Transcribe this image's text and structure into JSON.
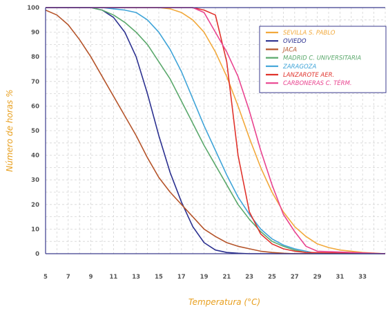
{
  "chart_data": {
    "type": "line",
    "title": "",
    "xlabel": "Temperatura (°C)",
    "ylabel": "Número de horas %",
    "xlim": [
      5,
      35
    ],
    "ylim": [
      0,
      100
    ],
    "xticks": [
      5,
      7,
      9,
      11,
      13,
      15,
      17,
      19,
      21,
      23,
      25,
      27,
      29,
      31,
      33
    ],
    "yticks": [
      0,
      10,
      20,
      30,
      40,
      50,
      60,
      70,
      80,
      90,
      100
    ],
    "grid": true,
    "legend_position": "top-right",
    "series": [
      {
        "name": "SEVILLA S. PABLO",
        "color": "#f2a93b",
        "x": [
          5,
          7,
          9,
          11,
          13,
          15,
          16,
          17,
          18,
          19,
          20,
          21,
          22,
          23,
          24,
          25,
          26,
          27,
          28,
          29,
          30,
          31,
          32,
          33,
          35
        ],
        "y": [
          100,
          100,
          100,
          100,
          100,
          100,
          99.5,
          98,
          95,
          90,
          82,
          72,
          60,
          47,
          35,
          25,
          17,
          11,
          7,
          4,
          2.5,
          1.5,
          1,
          0.5,
          0
        ]
      },
      {
        "name": "OVIEDO",
        "color": "#2a2f8f",
        "x": [
          5,
          9,
          10,
          11,
          12,
          13,
          14,
          15,
          16,
          17,
          18,
          19,
          20,
          21,
          22,
          23,
          35
        ],
        "y": [
          100,
          100,
          99,
          96,
          90,
          80,
          65,
          48,
          33,
          21,
          11,
          4.5,
          1.5,
          0.5,
          0.2,
          0,
          0
        ]
      },
      {
        "name": "JACA",
        "color": "#b5542a",
        "x": [
          5,
          6,
          7,
          8,
          9,
          10,
          11,
          12,
          13,
          14,
          15,
          16,
          17,
          18,
          19,
          20,
          21,
          22,
          23,
          24,
          25,
          26,
          27,
          35
        ],
        "y": [
          99,
          97,
          93,
          87,
          80,
          72,
          64,
          56,
          48,
          39,
          31,
          25,
          20,
          15,
          10,
          7,
          4.5,
          3,
          2,
          1,
          0.5,
          0.2,
          0,
          0
        ]
      },
      {
        "name": "MADRID C. UNIVERSITARIA",
        "color": "#5aa86b",
        "x": [
          5,
          9,
          10,
          11,
          12,
          13,
          14,
          15,
          16,
          17,
          18,
          19,
          20,
          21,
          22,
          23,
          24,
          25,
          26,
          27,
          28,
          29,
          35
        ],
        "y": [
          100,
          100,
          99,
          97,
          94,
          90,
          85,
          78,
          71,
          62,
          53,
          44,
          36,
          28,
          20,
          14,
          9,
          5,
          3,
          1.5,
          0.5,
          0,
          0
        ]
      },
      {
        "name": "ZARAGOZA",
        "color": "#3fa4d8",
        "x": [
          5,
          10,
          11,
          12,
          13,
          14,
          15,
          16,
          17,
          18,
          19,
          20,
          21,
          22,
          23,
          24,
          25,
          26,
          27,
          28,
          29,
          35
        ],
        "y": [
          100,
          100,
          99.5,
          99,
          98,
          95,
          90,
          83,
          74,
          63,
          52,
          42,
          32,
          23,
          16,
          10,
          6,
          3.5,
          2,
          1,
          0,
          0
        ]
      },
      {
        "name": "LANZAROTE AER.",
        "color": "#e0322b",
        "x": [
          5,
          18,
          19,
          20,
          21,
          22,
          23,
          24,
          25,
          26,
          27,
          28,
          35
        ],
        "y": [
          100,
          100,
          99,
          97,
          78,
          40,
          17,
          8,
          4,
          2,
          1,
          0.5,
          0
        ]
      },
      {
        "name": "CARBONERAS C. TÉRM.",
        "color": "#e9438f",
        "x": [
          5,
          18,
          19,
          20,
          21,
          22,
          23,
          24,
          25,
          26,
          27,
          28,
          29,
          35
        ],
        "y": [
          100,
          100,
          98,
          90,
          82,
          72,
          58,
          42,
          28,
          16,
          9,
          3,
          1,
          0
        ]
      }
    ]
  }
}
